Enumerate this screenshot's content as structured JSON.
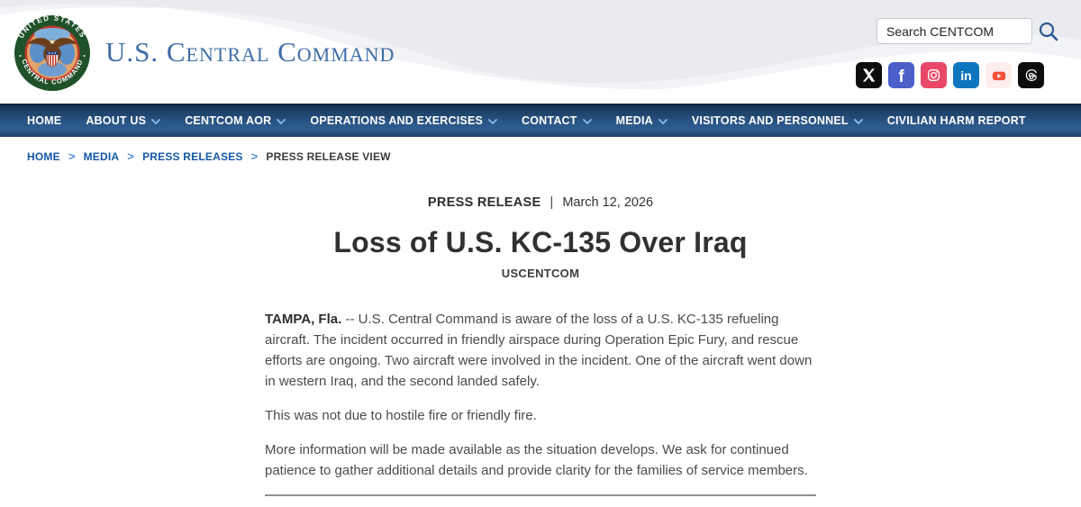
{
  "header": {
    "logo": {
      "top_text": "UNITED STATES",
      "bottom_text": "CENTRAL COMMAND"
    },
    "site_title": "U.S. Central Command",
    "search": {
      "placeholder": "Search CENTCOM"
    },
    "social_icons": [
      {
        "name": "x"
      },
      {
        "name": "facebook"
      },
      {
        "name": "instagram"
      },
      {
        "name": "linkedin"
      },
      {
        "name": "youtube"
      },
      {
        "name": "threads"
      }
    ]
  },
  "nav": {
    "items": [
      {
        "label": "HOME",
        "dropdown": false
      },
      {
        "label": "ABOUT US",
        "dropdown": true
      },
      {
        "label": "CENTCOM AOR",
        "dropdown": true
      },
      {
        "label": "OPERATIONS AND EXERCISES",
        "dropdown": true
      },
      {
        "label": "CONTACT",
        "dropdown": true
      },
      {
        "label": "MEDIA",
        "dropdown": true
      },
      {
        "label": "VISITORS AND PERSONNEL",
        "dropdown": true
      },
      {
        "label": "CIVILIAN HARM REPORT",
        "dropdown": false
      }
    ]
  },
  "breadcrumb": {
    "links": [
      "HOME",
      "MEDIA",
      "PRESS RELEASES"
    ],
    "separator": ">",
    "current": "PRESS RELEASE VIEW"
  },
  "article": {
    "kicker": "PRESS RELEASE",
    "meta_separator": "|",
    "date": "March 12, 2026",
    "title": "Loss of U.S. KC-135 Over Iraq",
    "byline": "USCENTCOM",
    "paragraphs": [
      {
        "lead": "TAMPA, Fla.",
        "text": "-- U.S. Central Command is aware of the loss of a U.S. KC-135 refueling aircraft. The incident occurred in friendly airspace during Operation Epic Fury, and rescue efforts are ongoing. Two aircraft were involved in the incident. One of the aircraft went down in western Iraq, and the second landed safely."
      },
      {
        "lead": "",
        "text": "This was not due to hostile fire or friendly fire."
      },
      {
        "lead": "",
        "text": "More information will be made available as the situation develops. We ask for continued patience to gather additional details and provide clarity for the families of service members."
      }
    ]
  },
  "colors": {
    "nav_blue": "#2a5585",
    "link_blue": "#1458a7",
    "site_title_blue": "#3f6ea6",
    "seal_green": "#20522a",
    "seal_red": "#c0392b"
  }
}
